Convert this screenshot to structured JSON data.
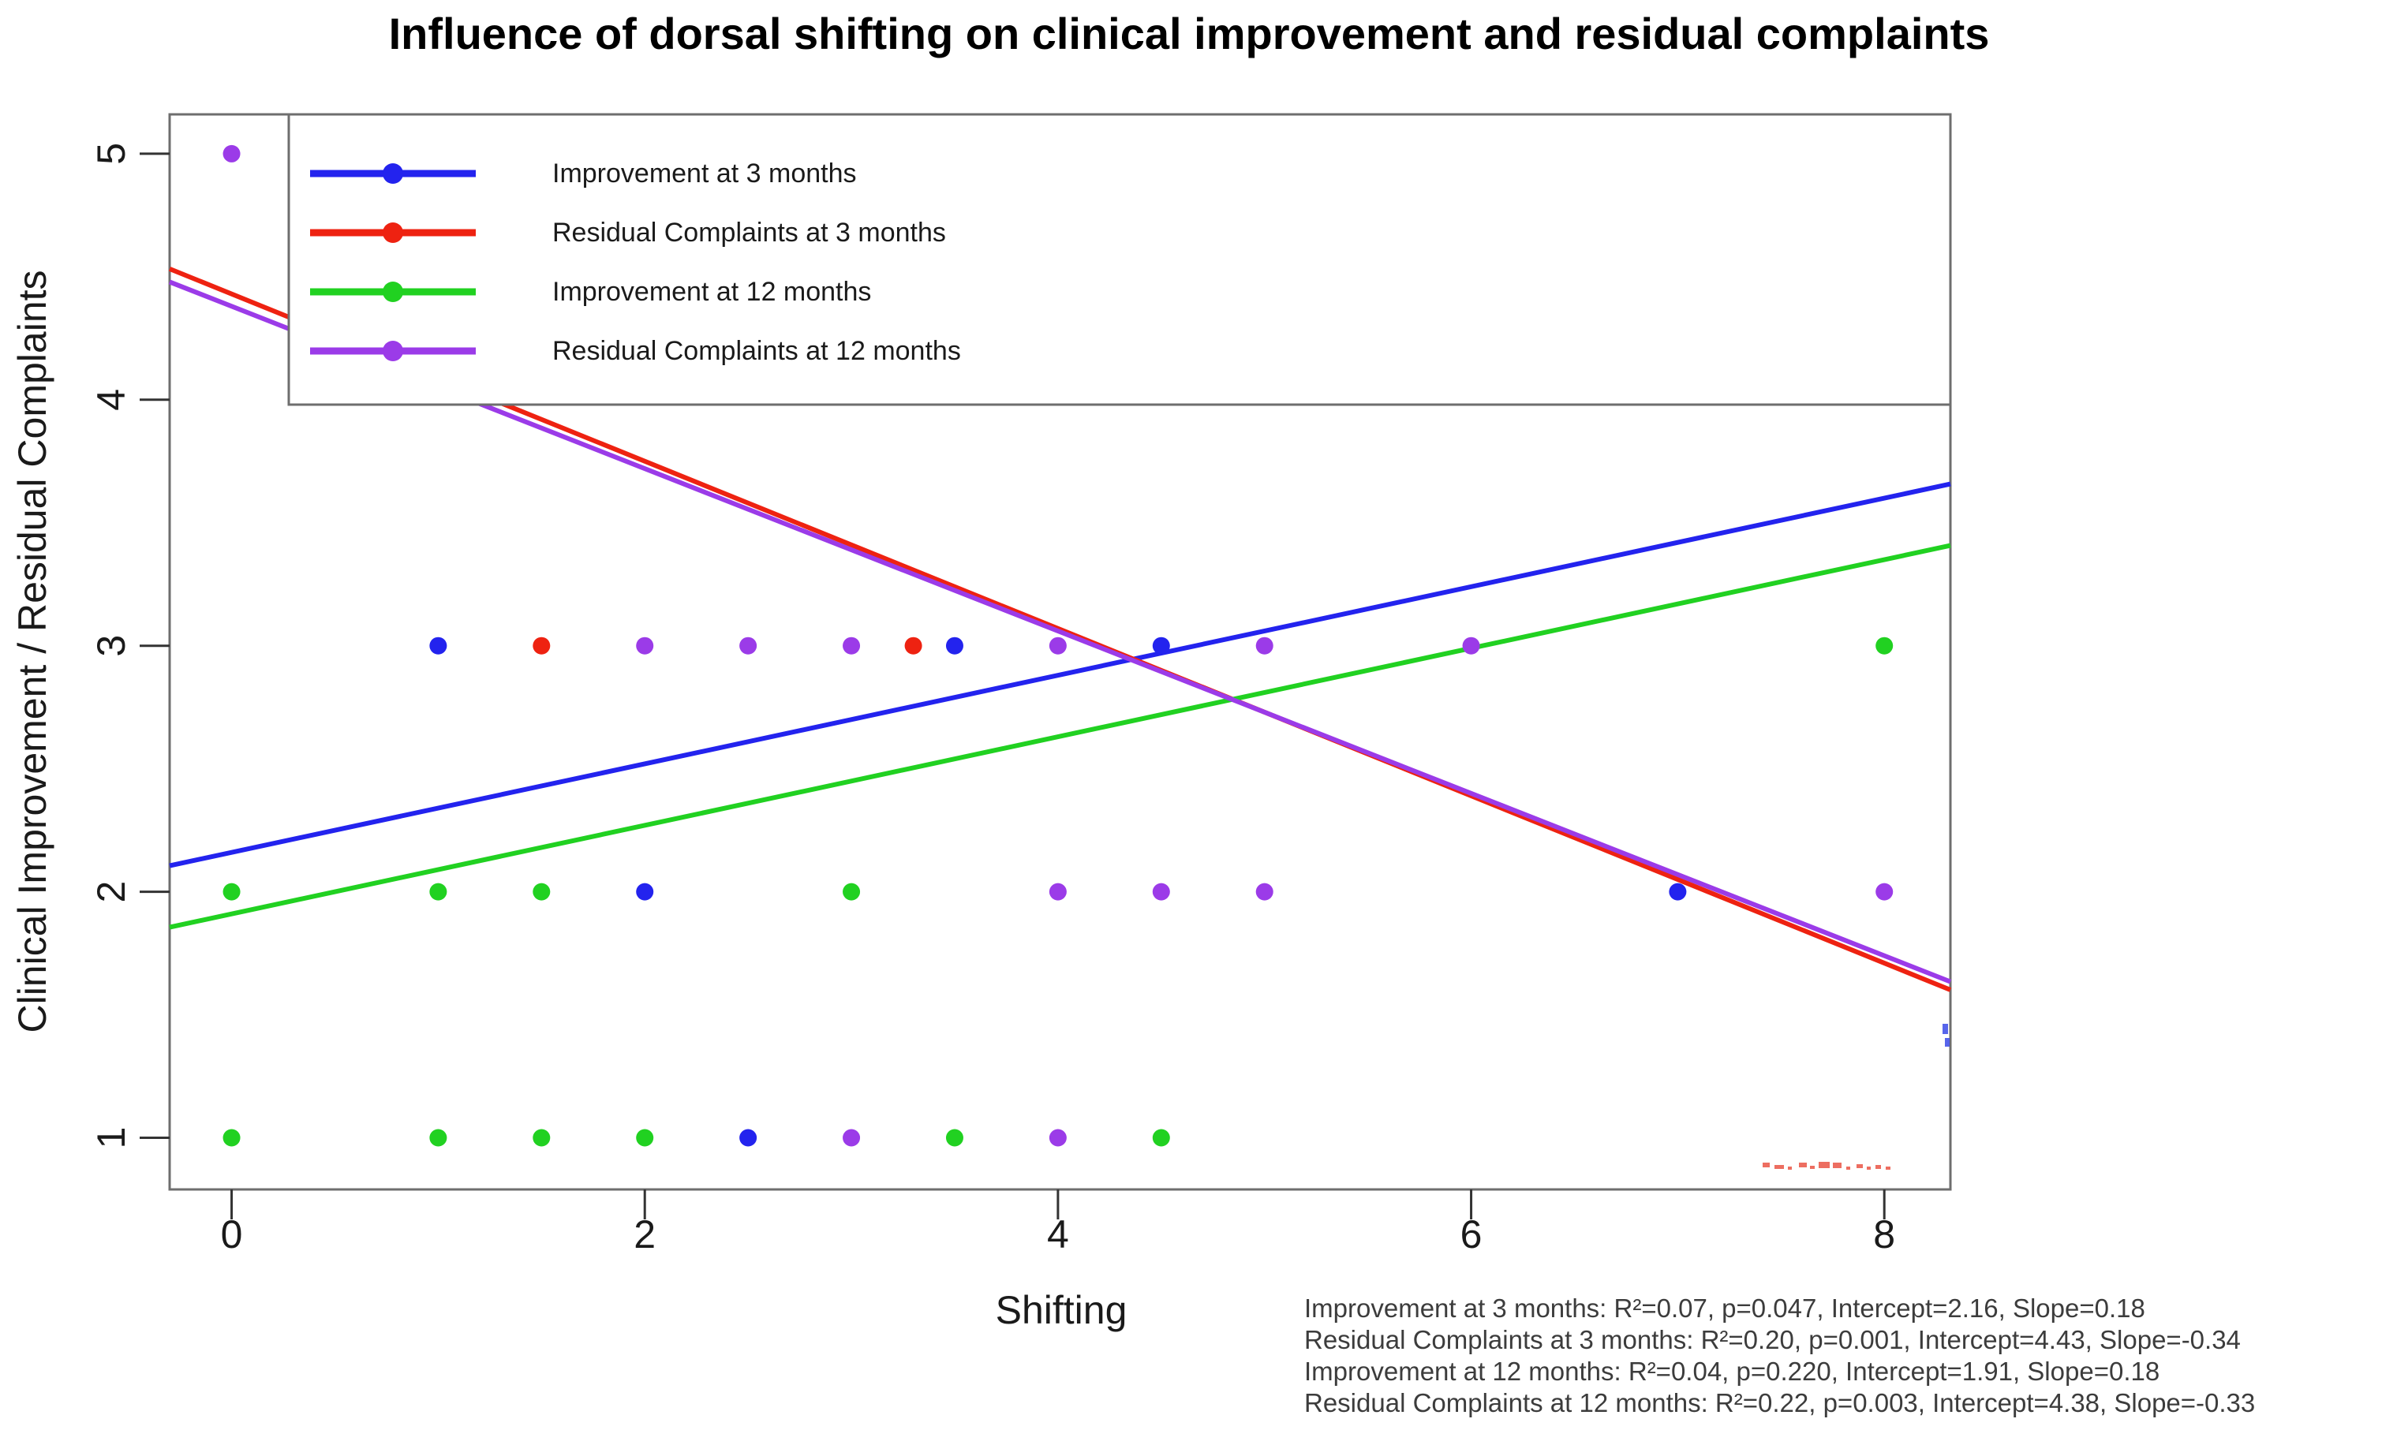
{
  "title": "Influence of dorsal shifting on clinical improvement and residual complaints",
  "chart_data": {
    "type": "scatter",
    "title": "Influence of dorsal shifting on clinical improvement and residual complaints",
    "xlabel": "Shifting",
    "ylabel": "Clinical Improvement / Residual Complaints",
    "xlim": [
      -0.3,
      8.32
    ],
    "ylim": [
      0.79,
      5.16
    ],
    "x_ticks": [
      0,
      2,
      4,
      6,
      8
    ],
    "y_ticks": [
      1,
      2,
      3,
      4,
      5
    ],
    "grid": false,
    "legend_position": "top-left-inside",
    "series": [
      {
        "name": "Improvement at 3 months",
        "color": "#2323ee",
        "points": [
          [
            1,
            3
          ],
          [
            3.5,
            3
          ],
          [
            4.5,
            3
          ],
          [
            2,
            2
          ],
          [
            7,
            2
          ],
          [
            2.5,
            1
          ]
        ],
        "fit": {
          "r2": "0.07",
          "p": "0.047",
          "intercept": 2.16,
          "slope": 0.18
        }
      },
      {
        "name": "Residual Complaints at 3 months",
        "color": "#ee2211",
        "points": [
          [
            1.5,
            3
          ],
          [
            3.3,
            3
          ]
        ],
        "fit": {
          "r2": "0.20",
          "p": "0.001",
          "intercept": 4.43,
          "slope": -0.34
        }
      },
      {
        "name": "Improvement at 12 months",
        "color": "#21d121",
        "points": [
          [
            8,
            3
          ],
          [
            0,
            2
          ],
          [
            1,
            2
          ],
          [
            1.5,
            2
          ],
          [
            3,
            2
          ],
          [
            0,
            1
          ],
          [
            1,
            1
          ],
          [
            1.5,
            1
          ],
          [
            2,
            1
          ],
          [
            3.5,
            1
          ],
          [
            4.5,
            1
          ]
        ],
        "fit": {
          "r2": "0.04",
          "p": "0.220",
          "intercept": 1.91,
          "slope": 0.18
        }
      },
      {
        "name": "Residual Complaints at 12 months",
        "color": "#9b3be8",
        "points": [
          [
            0,
            5
          ],
          [
            2,
            3
          ],
          [
            2.5,
            3
          ],
          [
            3,
            3
          ],
          [
            4,
            3
          ],
          [
            5,
            3
          ],
          [
            6,
            3
          ],
          [
            4,
            2
          ],
          [
            4.5,
            2
          ],
          [
            5,
            2
          ],
          [
            8,
            2
          ],
          [
            3,
            1
          ],
          [
            4,
            1
          ]
        ],
        "fit": {
          "r2": "0.22",
          "p": "0.003",
          "intercept": 4.38,
          "slope": -0.33
        }
      }
    ]
  },
  "stats_text": {
    "lines": [
      "Improvement at 3 months: R²=0.07, p=0.047, Intercept=2.16, Slope=0.18",
      "Residual Complaints at 3 months: R²=0.20, p=0.001, Intercept=4.43, Slope=-0.34",
      "Improvement at 12 months: R²=0.04, p=0.220, Intercept=1.91, Slope=0.18",
      "Residual Complaints at 12 months: R²=0.22, p=0.003, Intercept=4.38, Slope=-0.33"
    ]
  },
  "colors": {
    "background": "#ffffff",
    "axis_box": "#6e6e6e",
    "tick_mark": "#333333",
    "tick_label": "#1a1a1a",
    "title": "#000000",
    "axis_label": "#1a1a1a",
    "legend_border": "#6e6e6e",
    "legend_text": "#1a1a1a",
    "stats_text": "#3c3c3c",
    "artifact_red": "#e84a3a",
    "artifact_blue": "#3a4ae8"
  },
  "artifacts": {
    "red_axis_marks": [
      [
        2234,
        1474,
        9,
        6
      ],
      [
        2249,
        1477,
        12,
        5
      ],
      [
        2266,
        1479,
        5,
        4
      ],
      [
        2280,
        1474,
        10,
        6
      ],
      [
        2294,
        1478,
        6,
        4
      ],
      [
        2305,
        1473,
        14,
        8
      ],
      [
        2323,
        1474,
        11,
        7
      ],
      [
        2340,
        1479,
        5,
        4
      ],
      [
        2353,
        1476,
        8,
        5
      ],
      [
        2366,
        1479,
        5,
        4
      ],
      [
        2377,
        1477,
        7,
        5
      ],
      [
        2390,
        1479,
        6,
        4
      ]
    ],
    "blue_edge_marks": [
      [
        2462,
        1298,
        7,
        13
      ],
      [
        2465,
        1316,
        6,
        11
      ]
    ]
  }
}
